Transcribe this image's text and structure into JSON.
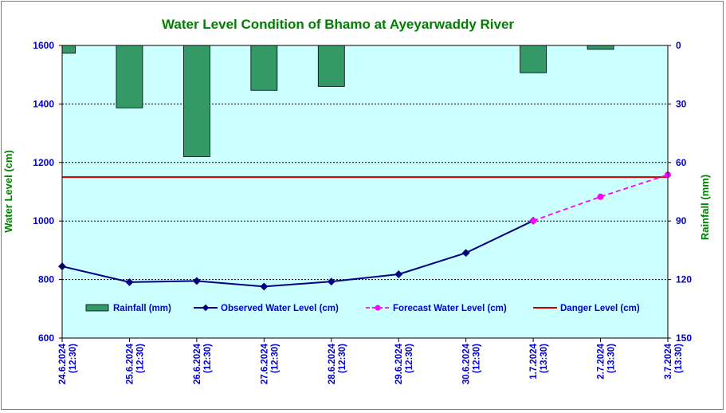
{
  "chart_data": {
    "type": "line",
    "title": "Water Level Condition of Bhamo at  Ayeyarwaddy River",
    "ylabel": "Water Level (cm)",
    "y2label": "Rainfall (mm)",
    "ylim": [
      600,
      1600
    ],
    "yticks": [
      "1600",
      "1400",
      "1200",
      "1000",
      "800",
      "600"
    ],
    "y2lim": [
      0,
      150
    ],
    "y2reversed": true,
    "y2ticks": [
      "0",
      "30",
      "60",
      "90",
      "120",
      "150"
    ],
    "grid": true,
    "legend_position": "inside-bottom",
    "categories": [
      [
        "24.6.2024",
        "(12:30)"
      ],
      [
        "25.6.2024",
        "(12:30)"
      ],
      [
        "26.6.2024",
        "(12:30)"
      ],
      [
        "27.6.2024",
        "(12:30)"
      ],
      [
        "28.6.2024",
        "(12:30)"
      ],
      [
        "29.6.2024",
        "(12:30)"
      ],
      [
        "30.6.2024",
        "(12:30)"
      ],
      [
        "1.7.2024",
        "(13:30)"
      ],
      [
        "2.7.2024",
        "(13:30)"
      ],
      [
        "3.7.2024",
        "(13:30)"
      ]
    ],
    "series": [
      {
        "name": "Rainfall (mm)",
        "kind": "bar",
        "axis": "y2",
        "color": "#339966",
        "values": [
          4,
          32,
          57,
          23,
          21,
          null,
          null,
          14,
          2,
          null
        ]
      },
      {
        "name": "Observed Water Level (cm)",
        "kind": "line",
        "axis": "y",
        "color": "#000080",
        "values": [
          845,
          791,
          795,
          776,
          793,
          818,
          891,
          1001,
          null,
          null
        ]
      },
      {
        "name": "Forecast Water Level (cm)",
        "kind": "dashed-line",
        "axis": "y",
        "color": "#ff00ff",
        "values": [
          null,
          null,
          null,
          null,
          null,
          null,
          null,
          1001,
          1083,
          1158
        ]
      },
      {
        "name": "Danger Level (cm)",
        "kind": "hline",
        "axis": "y",
        "color": "#cc0000",
        "value": 1150
      }
    ]
  }
}
